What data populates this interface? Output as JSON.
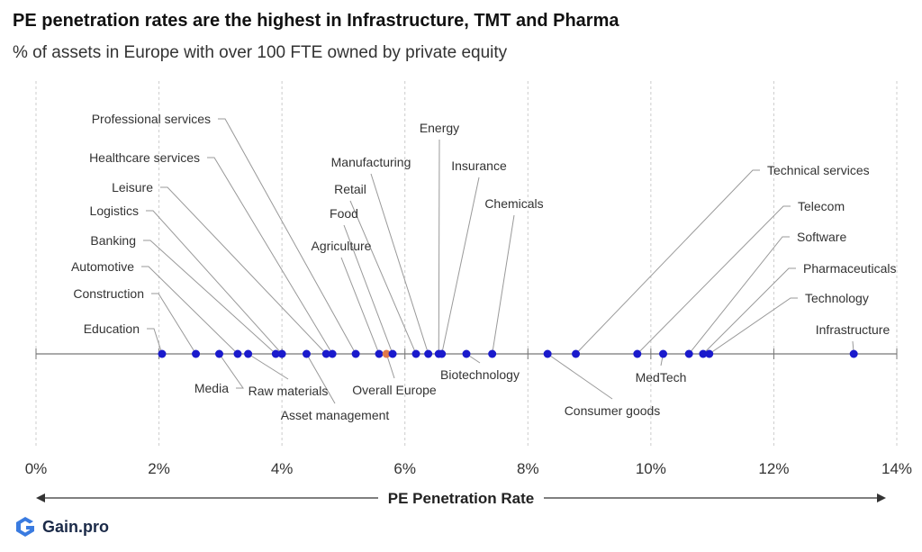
{
  "header": {
    "title": "PE penetration rates are the highest in Infrastructure, TMT and Pharma",
    "subtitle": "% of  assets in Europe with over 100 FTE owned by private equity"
  },
  "brand": {
    "name": "Gain.pro",
    "logo_icon": "gain-pro-logo-icon"
  },
  "colors": {
    "point": "#1a1acc",
    "highlight": "#e07a4a",
    "leader": "#999999",
    "grid": "#cccccc",
    "axis": "#777777"
  },
  "chart_data": {
    "type": "scatter",
    "title": "PE penetration rates are the highest in Infrastructure, TMT and Pharma",
    "subtitle": "% of  assets in Europe with over 100 FTE owned by private equity",
    "xlabel": "PE Penetration Rate",
    "ylabel": "",
    "xlim": [
      0,
      14
    ],
    "x_ticks": [
      0,
      2,
      4,
      6,
      8,
      10,
      12,
      14
    ],
    "x_tick_labels": [
      "0%",
      "2%",
      "4%",
      "6%",
      "8%",
      "10%",
      "12%",
      "14%"
    ],
    "grid": true,
    "legend": "none",
    "points": [
      {
        "label": "Education",
        "x": 2.05
      },
      {
        "label": "Construction",
        "x": 2.6
      },
      {
        "label": "Media",
        "x": 2.98
      },
      {
        "label": "Automotive",
        "x": 3.28
      },
      {
        "label": "Raw materials",
        "x": 3.45
      },
      {
        "label": "Banking",
        "x": 3.9
      },
      {
        "label": "Logistics",
        "x": 4.0
      },
      {
        "label": "Asset management",
        "x": 4.4
      },
      {
        "label": "Leisure",
        "x": 4.72
      },
      {
        "label": "Healthcare services",
        "x": 4.82
      },
      {
        "label": "Professional services",
        "x": 5.2
      },
      {
        "label": "Agriculture",
        "x": 5.58
      },
      {
        "label": "Overall Europe",
        "x": 5.7,
        "highlight": true
      },
      {
        "label": "Food",
        "x": 5.8
      },
      {
        "label": "Retail",
        "x": 6.18
      },
      {
        "label": "Manufacturing",
        "x": 6.38
      },
      {
        "label": "Energy",
        "x": 6.55
      },
      {
        "label": "Insurance",
        "x": 6.6
      },
      {
        "label": "Biotechnology",
        "x": 7.0
      },
      {
        "label": "Chemicals",
        "x": 7.42
      },
      {
        "label": "Consumer goods",
        "x": 8.32
      },
      {
        "label": "Technical services",
        "x": 8.78
      },
      {
        "label": "Telecom",
        "x": 9.78
      },
      {
        "label": "MedTech",
        "x": 10.2
      },
      {
        "label": "Software",
        "x": 10.62
      },
      {
        "label": "Pharmaceuticals",
        "x": 10.85
      },
      {
        "label": "Technology",
        "x": 10.95
      },
      {
        "label": "Infrastructure",
        "x": 13.3
      }
    ]
  }
}
